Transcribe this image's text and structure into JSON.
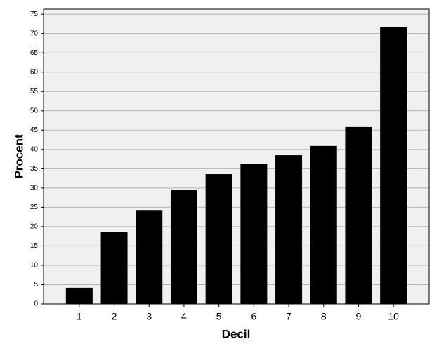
{
  "chart_data": {
    "type": "bar",
    "x_label": "Decil",
    "y_label": "Procent",
    "categories": [
      "1",
      "2",
      "3",
      "4",
      "5",
      "6",
      "7",
      "8",
      "9",
      "10"
    ],
    "values": [
      4.2,
      18.7,
      24.3,
      29.6,
      33.6,
      36.3,
      38.5,
      40.9,
      45.8,
      71.7
    ],
    "color": "#000000",
    "ylim": [
      0,
      76.3
    ],
    "yticks": [
      0,
      5,
      10,
      15,
      20,
      25,
      30,
      35,
      40,
      45,
      50,
      55,
      60,
      65,
      70,
      75
    ],
    "grid": true
  }
}
